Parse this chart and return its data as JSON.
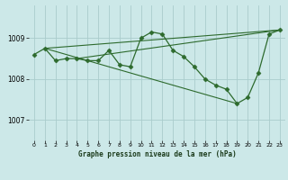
{
  "title": "Graphe pression niveau de la mer (hPa)",
  "bg_color": "#cce8e8",
  "grid_color": "#aacccc",
  "line_color": "#2d6a2d",
  "ylim": [
    1006.5,
    1009.8
  ],
  "yticks": [
    1007,
    1008,
    1009
  ],
  "xticks": [
    0,
    1,
    2,
    3,
    4,
    5,
    6,
    7,
    8,
    9,
    10,
    11,
    12,
    13,
    14,
    15,
    16,
    17,
    18,
    19,
    20,
    21,
    22,
    23
  ],
  "series1_x": [
    0,
    1,
    2,
    3,
    4,
    5,
    6,
    7,
    8,
    9,
    10,
    11,
    12,
    13,
    14,
    15,
    16,
    17,
    18,
    19,
    20,
    21,
    22,
    23
  ],
  "series1_y": [
    1008.6,
    1008.75,
    1008.45,
    1008.5,
    1008.5,
    1008.45,
    1008.45,
    1008.7,
    1008.35,
    1008.3,
    1009.0,
    1009.15,
    1009.1,
    1008.7,
    1008.55,
    1008.3,
    1008.0,
    1007.85,
    1007.75,
    1007.4,
    1007.55,
    1008.15,
    1009.1,
    1009.2
  ],
  "trend1_x": [
    1,
    23
  ],
  "trend1_y": [
    1008.75,
    1009.2
  ],
  "trend2_x": [
    1,
    19
  ],
  "trend2_y": [
    1008.75,
    1007.4
  ],
  "trend3_x": [
    4,
    23
  ],
  "trend3_y": [
    1008.5,
    1009.2
  ]
}
